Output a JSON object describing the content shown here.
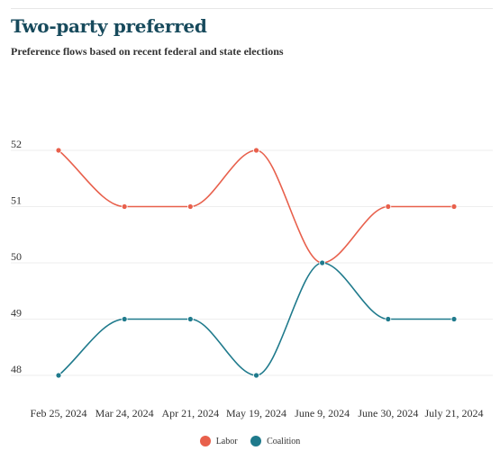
{
  "chart_data": {
    "type": "line",
    "title": "Two-party preferred",
    "subtitle": "Preference flows based on recent federal and state elections",
    "categories": [
      "Feb 25, 2024",
      "Mar 24, 2024",
      "Apr 21, 2024",
      "May 19, 2024",
      "June 9, 2024",
      "June 30, 2024",
      "July 21, 2024"
    ],
    "yticks": [
      48,
      49,
      50,
      51,
      52
    ],
    "ylim": [
      48,
      52
    ],
    "grid": true,
    "legend": "bottom-center",
    "series": [
      {
        "name": "Labor",
        "color": "#e8604c",
        "values": [
          52,
          51,
          51,
          52,
          50,
          51,
          51
        ]
      },
      {
        "name": "Coalition",
        "color": "#1f7a8c",
        "values": [
          48,
          49,
          49,
          48,
          50,
          49,
          49
        ]
      }
    ]
  }
}
